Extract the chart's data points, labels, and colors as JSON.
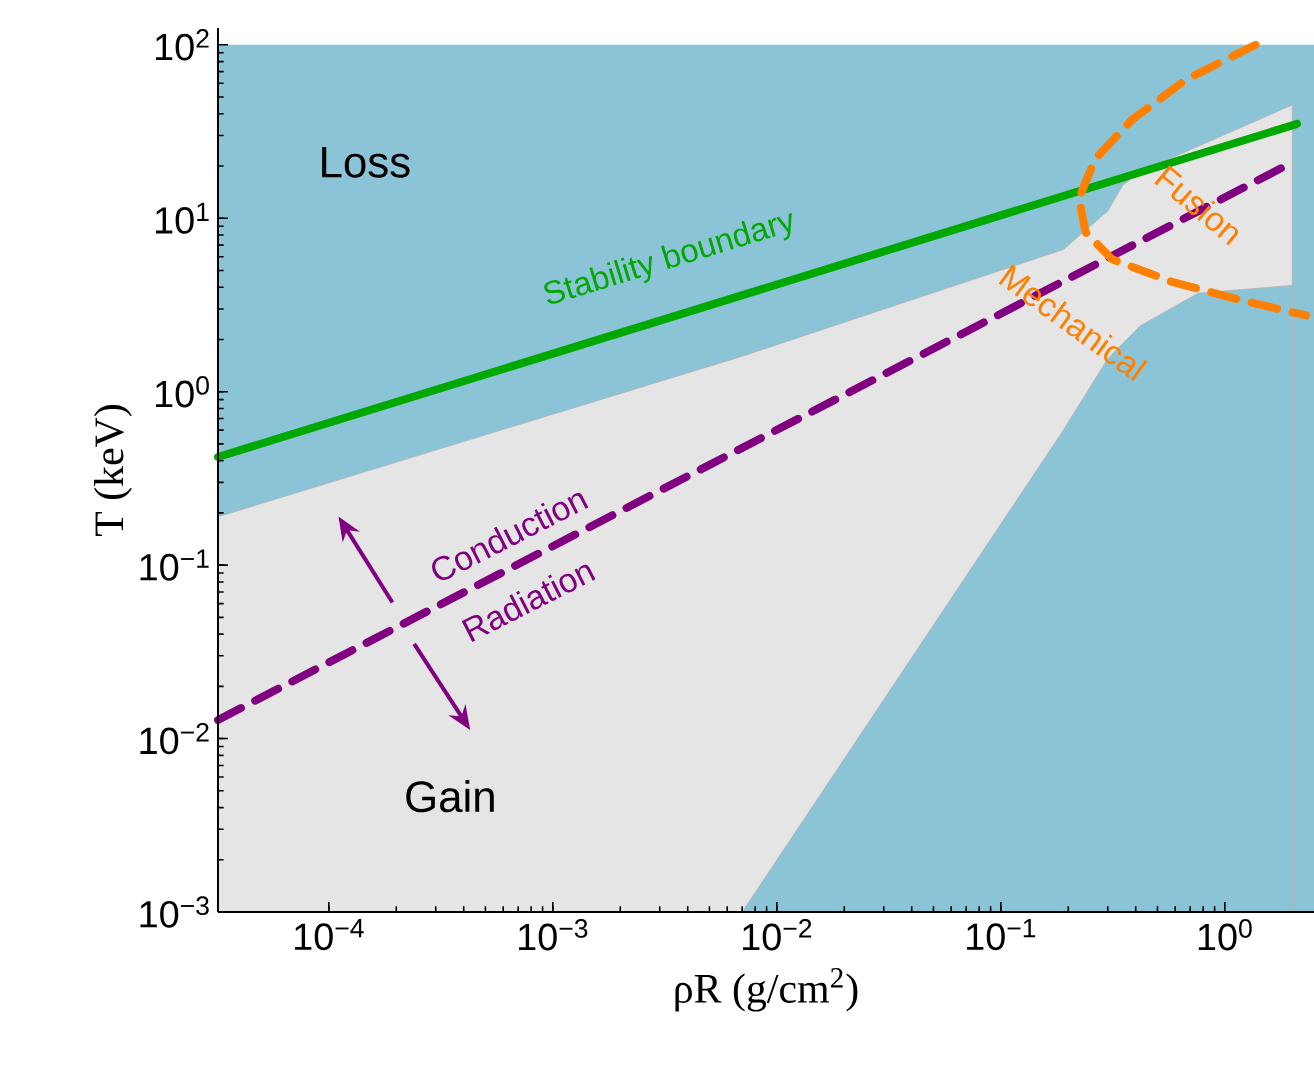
{
  "chart_data": {
    "type": "line",
    "xlabel": "ρR (g/cm$^{2}$)",
    "ylabel": "T (keV)",
    "log": "xy",
    "grid": false,
    "marker": "none",
    "bands": [
      {
        "axis": "y",
        "from": 0.001,
        "to": 100,
        "label": "Loss",
        "color": "#8cc4d7"
      }
    ],
    "xlim": [
      3.2e-05,
      2.5
    ],
    "ylim": [
      0.001,
      125
    ],
    "xticks": [
      {
        "value": 0.0001,
        "label": "10$^{−4}$"
      },
      {
        "value": 0.001,
        "label": "10$^{−3}$"
      },
      {
        "value": 0.01,
        "label": "10$^{−2}$"
      },
      {
        "value": 0.1,
        "label": "10$^{−1}$"
      },
      {
        "value": 1,
        "label": "10$^{0}$"
      }
    ],
    "yticks": [
      {
        "value": 0.001,
        "label": "10$^{−3}$"
      },
      {
        "value": 0.01,
        "label": "10$^{−2}$"
      },
      {
        "value": 0.1,
        "label": "10$^{−1}$"
      },
      {
        "value": 1,
        "label": "10$^{0}$"
      },
      {
        "value": 10,
        "label": "10$^{1}$"
      },
      {
        "value": 100,
        "label": "10$^{2}$"
      }
    ],
    "series": [
      {
        "name": "Gain",
        "type": "area",
        "color": "#e5e5e5",
        "x": [
          3.2e-05,
          0.007,
          0.19,
          0.3,
          0.35,
          0.42,
          0.76,
          2
        ],
        "values": [
          0.19,
          1.6,
          6.6,
          11,
          15.5,
          18.6,
          26,
          45
        ]
      },
      {
        "type": "area",
        "color": "#8cc4d7",
        "x": [
          3.2e-05,
          0.007,
          0.19,
          0.3,
          0.35,
          0.42,
          0.76,
          2
        ],
        "values": [
          0.001,
          0.001,
          0.6,
          1.55,
          1.9,
          2.4,
          3.7,
          4.1
        ]
      },
      {
        "name": "Stability boundary",
        "color": "#00a800",
        "line_style": "solid",
        "x": [
          3.2e-05,
          2.1
        ],
        "values": [
          0.42,
          35
        ]
      },
      {
        "color": "#800080",
        "line_style": "dashed",
        "x": [
          3.2e-05,
          2
        ],
        "values": [
          0.0128,
          21
        ]
      },
      {
        "name": "Fusion",
        "color": "#ff8000",
        "line_style": "dashed",
        "x": [
          1.37,
          0.67,
          0.385,
          0.264,
          0.223,
          0.239,
          0.314,
          0.58,
          1.15,
          2.3
        ],
        "values": [
          100,
          63,
          37,
          22,
          13,
          8.3,
          5.8,
          4.3,
          3.4,
          2.75
        ]
      }
    ],
    "annotations": [
      "Conduction",
      "Radiation",
      "Mechanical"
    ]
  }
}
